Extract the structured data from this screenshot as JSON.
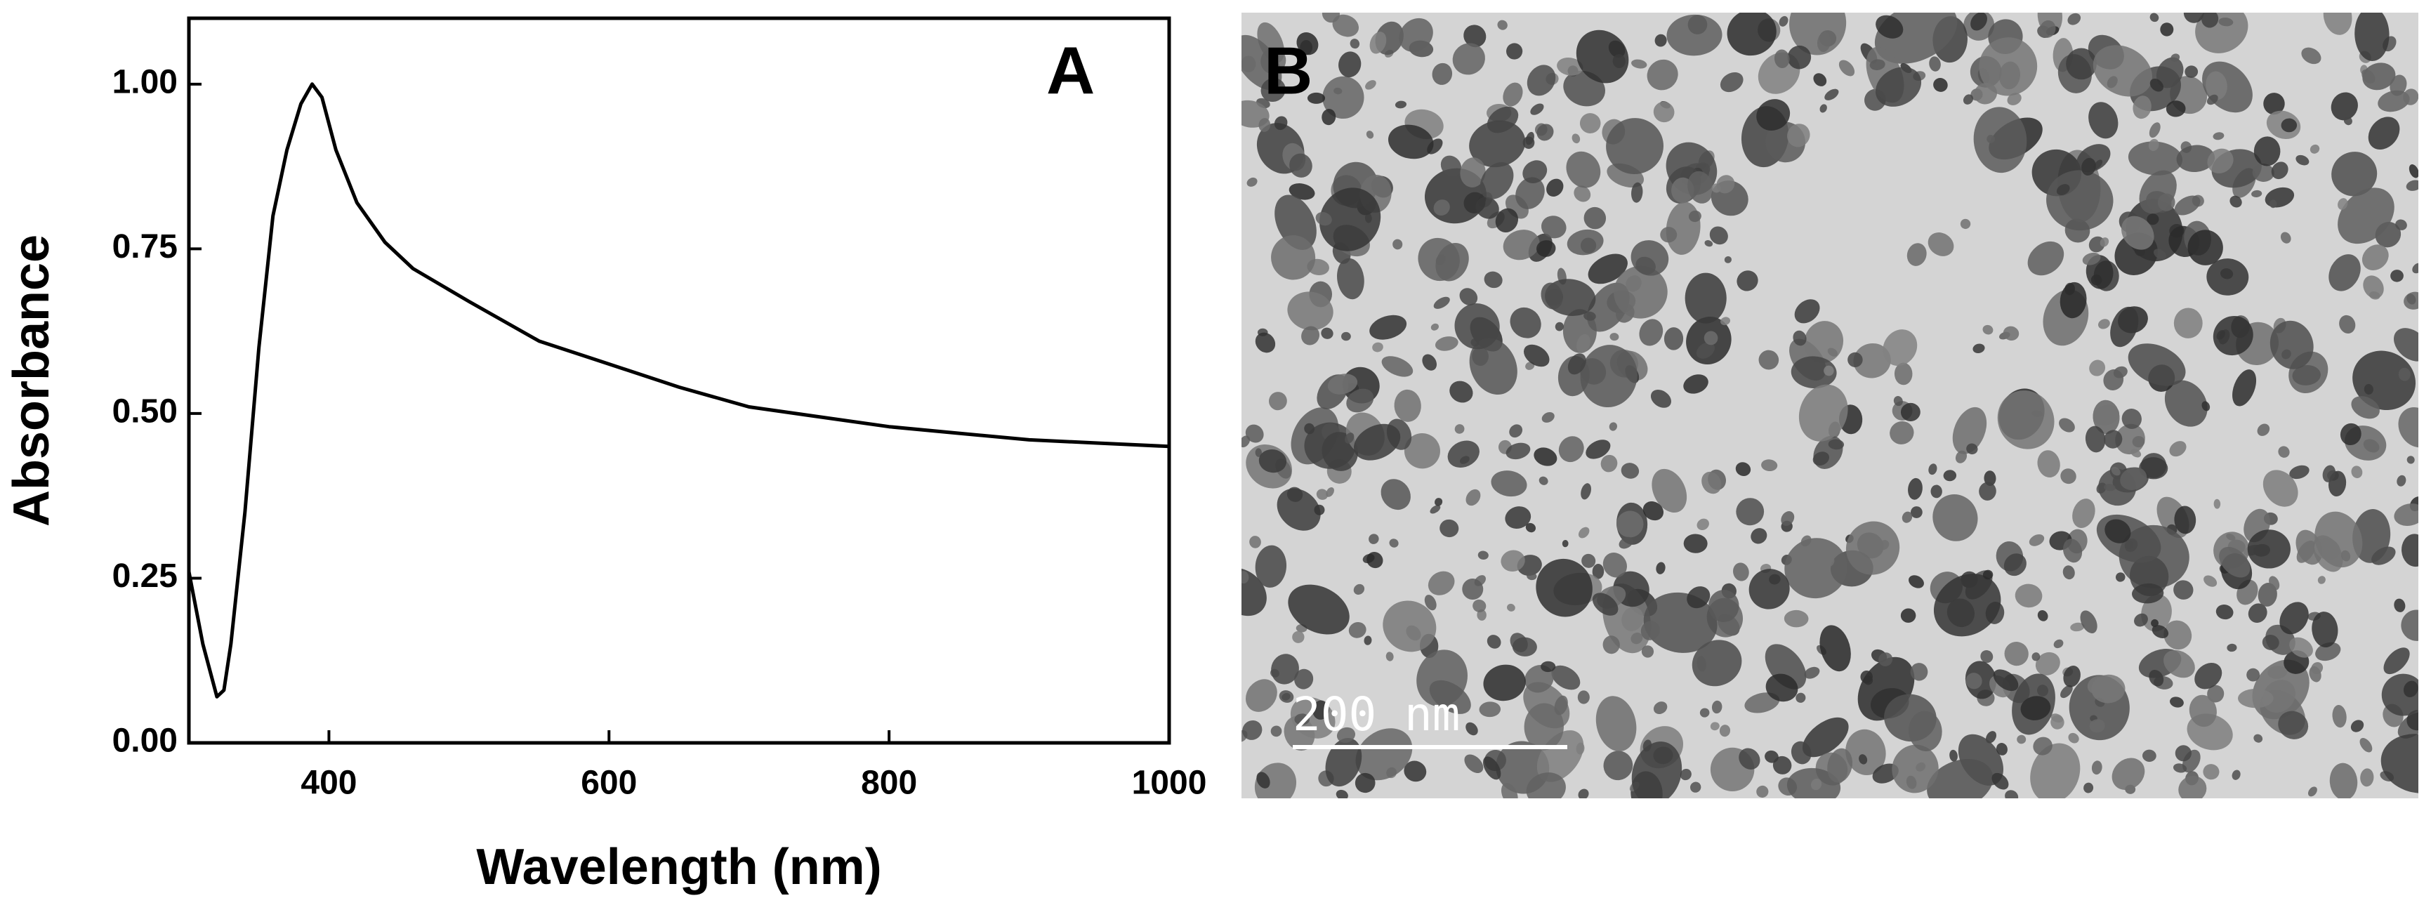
{
  "chart_data": {
    "type": "line",
    "panel_label": "A",
    "x_label": "Wavelength (nm)",
    "y_label": "Absorbance",
    "xlim": [
      300,
      1000
    ],
    "ylim": [
      0,
      1.1
    ],
    "xticks": [
      400,
      600,
      800,
      1000
    ],
    "yticks": [
      {
        "value": 0,
        "label": "0.00"
      },
      {
        "value": 0.25,
        "label": "0.25"
      },
      {
        "value": 0.5,
        "label": "0.50"
      },
      {
        "value": 0.75,
        "label": "0.75"
      },
      {
        "value": 1,
        "label": "1.00"
      }
    ],
    "series": [
      {
        "color": "#000000",
        "x": [
          300,
          310,
          320,
          325,
          330,
          340,
          350,
          360,
          370,
          380,
          388,
          395,
          405,
          420,
          440,
          460,
          500,
          550,
          600,
          650,
          700,
          750,
          800,
          850,
          900,
          950,
          1000
        ],
        "values": [
          0.26,
          0.15,
          0.07,
          0.08,
          0.15,
          0.35,
          0.6,
          0.8,
          0.9,
          0.97,
          1.0,
          0.98,
          0.9,
          0.82,
          0.76,
          0.72,
          0.67,
          0.61,
          0.575,
          0.54,
          0.51,
          0.495,
          0.48,
          0.47,
          0.46,
          0.455,
          0.45
        ]
      }
    ]
  },
  "image_panel": {
    "panel_label": "B",
    "scale_bar_label": "200 nm"
  }
}
